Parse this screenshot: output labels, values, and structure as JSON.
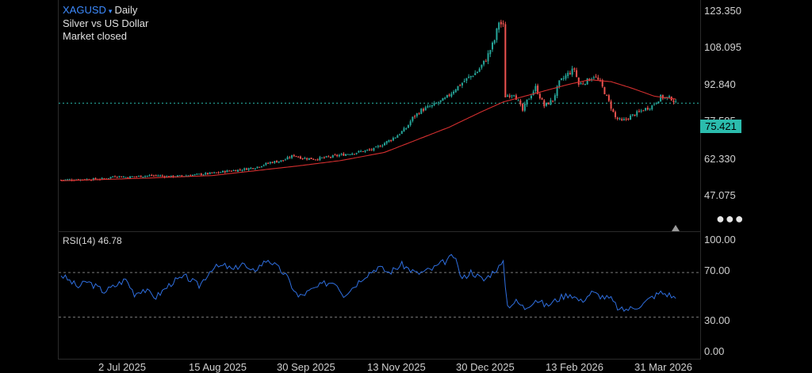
{
  "header": {
    "symbol": "XAGUSD",
    "caret": "▾",
    "interval": "Daily",
    "description": "Silver vs US Dollar",
    "status": "Market closed"
  },
  "price_axis": {
    "labels": [
      "123.350",
      "108.095",
      "92.840",
      "77.585",
      "62.330",
      "47.075"
    ],
    "last_price": "75.421",
    "more_icon": "more-dots-icon"
  },
  "rsi": {
    "label": "RSI(14) 46.78",
    "axis_labels": [
      "100.00",
      "70.00",
      "30.00",
      "0.00"
    ]
  },
  "time_axis": {
    "labels": [
      "2 Jul 2025",
      "15 Aug 2025",
      "30 Sep 2025",
      "13 Nov 2025",
      "30 Dec 2025",
      "13 Feb 2026",
      "31 Mar 2026"
    ]
  },
  "colors": {
    "up": "#26a69a",
    "down": "#ef5350",
    "ma": "#d32f2f",
    "rsi": "#2f6fe0",
    "last_price_line": "#2bbcad"
  },
  "chart_data": [
    {
      "type": "candlestick",
      "title": "XAGUSD Daily",
      "ylim": [
        34,
        124
      ],
      "x_ticks": [
        "2 Jul 2025",
        "15 Aug 2025",
        "30 Sep 2025",
        "13 Nov 2025",
        "30 Dec 2025",
        "13 Feb 2026",
        "31 Mar 2026"
      ],
      "y_ticks": [
        123.35,
        108.095,
        92.84,
        77.585,
        62.33,
        47.075
      ],
      "last_price": 75.421,
      "close_path": [
        [
          0,
          35.8
        ],
        [
          10,
          36.0
        ],
        [
          20,
          36.3
        ],
        [
          25,
          37.8
        ],
        [
          30,
          37.2
        ],
        [
          40,
          37.9
        ],
        [
          45,
          38.0
        ],
        [
          50,
          37.4
        ],
        [
          57,
          37.9
        ],
        [
          64,
          38.6
        ],
        [
          72,
          39.4
        ],
        [
          76,
          40.2
        ],
        [
          83,
          41.0
        ],
        [
          90,
          42.2
        ],
        [
          97,
          44.8
        ],
        [
          103,
          45.8
        ],
        [
          108,
          48.5
        ],
        [
          112,
          47.0
        ],
        [
          118,
          46.6
        ],
        [
          124,
          47.5
        ],
        [
          130,
          48.7
        ],
        [
          135,
          49.6
        ],
        [
          140,
          50.6
        ],
        [
          145,
          51.6
        ],
        [
          150,
          54.8
        ],
        [
          155,
          58.0
        ],
        [
          160,
          62.5
        ],
        [
          163,
          67.8
        ],
        [
          167,
          71.8
        ],
        [
          172,
          74.0
        ],
        [
          178,
          77.5
        ],
        [
          183,
          83.0
        ],
        [
          188,
          87.8
        ],
        [
          193,
          91.7
        ],
        [
          197,
          98.0
        ],
        [
          201,
          108.0
        ],
        [
          203,
          117.5
        ],
        [
          205,
          115.0
        ],
        [
          206,
          79.0
        ],
        [
          210,
          80.5
        ],
        [
          214,
          71.5
        ],
        [
          216,
          76.5
        ],
        [
          220,
          83.5
        ],
        [
          224,
          74.0
        ],
        [
          228,
          77.0
        ],
        [
          231,
          86.0
        ],
        [
          235,
          90.5
        ],
        [
          238,
          93.0
        ],
        [
          240,
          85.0
        ],
        [
          244,
          87.0
        ],
        [
          247,
          89.5
        ],
        [
          250,
          86.0
        ],
        [
          254,
          76.0
        ],
        [
          257,
          68.0
        ],
        [
          260,
          66.0
        ],
        [
          264,
          68.5
        ],
        [
          270,
          72.0
        ],
        [
          274,
          74.0
        ],
        [
          278,
          78.5
        ],
        [
          283,
          77.8
        ],
        [
          285,
          75.4
        ]
      ]
    },
    {
      "type": "line",
      "title": "RSI(14) 46.78",
      "ylim": [
        0,
        100
      ],
      "y_ticks": [
        100.0,
        70.0,
        30.0,
        0.0
      ],
      "last_value": 46.78,
      "path": [
        [
          0,
          68
        ],
        [
          8,
          57
        ],
        [
          12,
          62
        ],
        [
          20,
          53
        ],
        [
          25,
          58
        ],
        [
          30,
          64
        ],
        [
          34,
          51
        ],
        [
          38,
          55
        ],
        [
          44,
          48
        ],
        [
          52,
          62
        ],
        [
          58,
          66
        ],
        [
          64,
          58
        ],
        [
          70,
          74
        ],
        [
          76,
          76
        ],
        [
          80,
          72
        ],
        [
          84,
          79
        ],
        [
          88,
          70
        ],
        [
          96,
          82
        ],
        [
          104,
          68
        ],
        [
          110,
          48
        ],
        [
          116,
          54
        ],
        [
          122,
          60
        ],
        [
          127,
          62
        ],
        [
          131,
          50
        ],
        [
          136,
          58
        ],
        [
          140,
          66
        ],
        [
          147,
          75
        ],
        [
          152,
          70
        ],
        [
          158,
          77
        ],
        [
          165,
          69
        ],
        [
          172,
          73
        ],
        [
          178,
          80
        ],
        [
          182,
          85
        ],
        [
          186,
          64
        ],
        [
          190,
          71
        ],
        [
          196,
          63
        ],
        [
          201,
          72
        ],
        [
          205,
          78
        ],
        [
          207,
          40
        ],
        [
          211,
          44
        ],
        [
          215,
          38
        ],
        [
          220,
          46
        ],
        [
          225,
          40
        ],
        [
          232,
          48
        ],
        [
          236,
          51
        ],
        [
          241,
          44
        ],
        [
          246,
          52
        ],
        [
          250,
          49
        ],
        [
          255,
          46
        ],
        [
          259,
          36
        ],
        [
          265,
          38
        ],
        [
          270,
          42
        ],
        [
          274,
          48
        ],
        [
          278,
          52
        ],
        [
          282,
          50
        ],
        [
          285,
          46.78
        ]
      ]
    },
    {
      "type": "line",
      "title": "",
      "path": [
        [
          0,
          35.3
        ],
        [
          40,
          36.7
        ],
        [
          70,
          38.0
        ],
        [
          90,
          40.5
        ],
        [
          110,
          43.0
        ],
        [
          130,
          45.8
        ],
        [
          150,
          50.0
        ],
        [
          165,
          56.5
        ],
        [
          180,
          63.0
        ],
        [
          195,
          71.0
        ],
        [
          205,
          76.0
        ],
        [
          215,
          79.0
        ],
        [
          225,
          82.0
        ],
        [
          235,
          85.0
        ],
        [
          245,
          87.5
        ],
        [
          255,
          86.5
        ],
        [
          265,
          83.0
        ],
        [
          275,
          79.0
        ],
        [
          285,
          77.5
        ]
      ]
    }
  ]
}
